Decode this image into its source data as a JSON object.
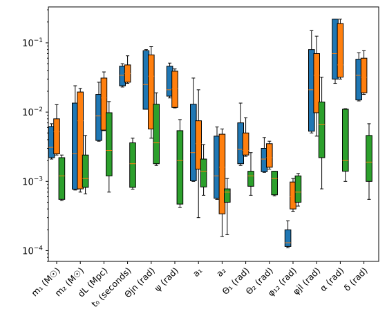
{
  "chart_data": {
    "type": "box",
    "title": "",
    "xlabel": "",
    "ylabel": "",
    "yscale": "log",
    "ylim": [
      7e-05,
      0.33
    ],
    "y_ticks": [
      {
        "value": 0.0001,
        "base": "10",
        "exp": "−4"
      },
      {
        "value": 0.001,
        "base": "10",
        "exp": "−3"
      },
      {
        "value": 0.01,
        "base": "10",
        "exp": "−2"
      },
      {
        "value": 0.1,
        "base": "10",
        "exp": "−1"
      }
    ],
    "categories": [
      "m₁ (M☉)",
      "m₂ (M☉)",
      "dL (Mpc)",
      "t₀ (seconds)",
      "Θjn (rad)",
      "ψ (rad)",
      "a₁",
      "a₂",
      "Θ₁ (rad)",
      "Θ₂ (rad)",
      "φ₁₂ (rad)",
      "φjl (rad)",
      "α (rad)",
      "δ (rad)"
    ],
    "series": [
      {
        "color": "#1f77b4",
        "boxes": [
          {
            "whislo": 0.0021,
            "q1": 0.0022,
            "med": 0.0031,
            "q3": 0.0062,
            "whishi": 0.0068
          },
          {
            "whislo": 0.00075,
            "q1": 0.00077,
            "med": 0.0025,
            "q3": 0.0135,
            "whishi": 0.024
          },
          {
            "whislo": 0.0038,
            "q1": 0.0039,
            "med": 0.0088,
            "q3": 0.018,
            "whishi": 0.027
          },
          {
            "whislo": 0.023,
            "q1": 0.024,
            "med": 0.034,
            "q3": 0.046,
            "whishi": 0.05
          },
          {
            "whislo": 0.011,
            "q1": 0.011,
            "med": 0.025,
            "q3": 0.077,
            "whishi": 0.08
          },
          {
            "whislo": 0.016,
            "q1": 0.017,
            "med": 0.021,
            "q3": 0.046,
            "whishi": 0.051
          },
          {
            "whislo": 0.001,
            "q1": 0.00102,
            "med": 0.0026,
            "q3": 0.013,
            "whishi": 0.031
          },
          {
            "whislo": 0.00055,
            "q1": 0.00057,
            "med": 0.0012,
            "q3": 0.0045,
            "whishi": 0.0061
          },
          {
            "whislo": 0.0017,
            "q1": 0.0018,
            "med": 0.0029,
            "q3": 0.007,
            "whishi": 0.0135
          },
          {
            "whislo": 0.00135,
            "q1": 0.00138,
            "med": 0.0021,
            "q3": 0.003,
            "whishi": 0.0043
          },
          {
            "whislo": 0.00011,
            "q1": 0.000115,
            "med": 0.00013,
            "q3": 0.0002,
            "whishi": 0.00027
          },
          {
            "whislo": 0.005,
            "q1": 0.0053,
            "med": 0.021,
            "q3": 0.08,
            "whishi": 0.15
          },
          {
            "whislo": 0.026,
            "q1": 0.03,
            "med": 0.07,
            "q3": 0.22,
            "whishi": 0.22
          },
          {
            "whislo": 0.0145,
            "q1": 0.015,
            "med": 0.034,
            "q3": 0.058,
            "whishi": 0.072
          }
        ]
      },
      {
        "color": "#ff7f0e",
        "boxes": [
          {
            "whislo": 0.0024,
            "q1": 0.0025,
            "med": 0.0052,
            "q3": 0.008,
            "whishi": 0.0128
          },
          {
            "whislo": 0.0007,
            "q1": 0.00078,
            "med": 0.0075,
            "q3": 0.0195,
            "whishi": 0.022
          },
          {
            "whislo": 0.0054,
            "q1": 0.0055,
            "med": 0.016,
            "q3": 0.031,
            "whishi": 0.038
          },
          {
            "whislo": 0.026,
            "q1": 0.027,
            "med": 0.036,
            "q3": 0.048,
            "whishi": 0.065
          },
          {
            "whislo": 0.0042,
            "q1": 0.0057,
            "med": 0.033,
            "q3": 0.067,
            "whishi": 0.088
          },
          {
            "whislo": 0.0115,
            "q1": 0.0117,
            "med": 0.022,
            "q3": 0.039,
            "whishi": 0.042
          },
          {
            "whislo": 0.0003,
            "q1": 0.0015,
            "med": 0.0035,
            "q3": 0.0075,
            "whishi": 0.021
          },
          {
            "whislo": 0.00016,
            "q1": 0.00034,
            "med": 0.0016,
            "q3": 0.0048,
            "whishi": 0.0057
          },
          {
            "whislo": 0.0023,
            "q1": 0.0024,
            "med": 0.0028,
            "q3": 0.005,
            "whishi": 0.0083
          },
          {
            "whislo": 0.0015,
            "q1": 0.0016,
            "med": 0.0022,
            "q3": 0.0035,
            "whishi": 0.0038
          },
          {
            "whislo": 0.00037,
            "q1": 0.0004,
            "med": 0.0006,
            "q3": 0.00098,
            "whishi": 0.0011
          },
          {
            "whislo": 0.0045,
            "q1": 0.0098,
            "med": 0.034,
            "q3": 0.07,
            "whishi": 0.125
          },
          {
            "whislo": 0.03,
            "q1": 0.032,
            "med": 0.048,
            "q3": 0.19,
            "whishi": 0.22
          },
          {
            "whislo": 0.018,
            "q1": 0.019,
            "med": 0.032,
            "q3": 0.06,
            "whishi": 0.077
          }
        ]
      },
      {
        "color": "#2ca02c",
        "boxes": [
          {
            "whislo": 0.00053,
            "q1": 0.00055,
            "med": 0.0012,
            "q3": 0.0022,
            "whishi": 0.0024
          },
          {
            "whislo": 0.00066,
            "q1": 0.00082,
            "med": 0.0011,
            "q3": 0.0024,
            "whishi": 0.0046
          },
          {
            "whislo": 0.0007,
            "q1": 0.0012,
            "med": 0.0028,
            "q3": 0.0098,
            "whishi": 0.0142
          },
          {
            "whislo": 0.00077,
            "q1": 0.00082,
            "med": 0.0018,
            "q3": 0.0036,
            "whishi": 0.0042
          },
          {
            "whislo": 0.0017,
            "q1": 0.0018,
            "med": 0.0036,
            "q3": 0.013,
            "whishi": 0.019
          },
          {
            "whislo": 0.00042,
            "q1": 0.00047,
            "med": 0.002,
            "q3": 0.0054,
            "whishi": 0.0078
          },
          {
            "whislo": 0.00063,
            "q1": 0.00083,
            "med": 0.0014,
            "q3": 0.0021,
            "whishi": 0.0034
          },
          {
            "whislo": 0.00017,
            "q1": 0.0005,
            "med": 0.0007,
            "q3": 0.00078,
            "whishi": 0.0011
          },
          {
            "whislo": 0.00063,
            "q1": 0.00085,
            "med": 0.0012,
            "q3": 0.0014,
            "whishi": 0.0026
          },
          {
            "whislo": 0.00062,
            "q1": 0.00064,
            "med": 0.0011,
            "q3": 0.0014,
            "whishi": 0.0014
          },
          {
            "whislo": 0.00044,
            "q1": 0.0005,
            "med": 0.0007,
            "q3": 0.0012,
            "whishi": 0.0013
          },
          {
            "whislo": 0.00078,
            "q1": 0.0022,
            "med": 0.0066,
            "q3": 0.014,
            "whishi": 0.032
          },
          {
            "whislo": 0.001,
            "q1": 0.0014,
            "med": 0.002,
            "q3": 0.011,
            "whishi": 0.0112
          },
          {
            "whislo": 0.00055,
            "q1": 0.001,
            "med": 0.0019,
            "q3": 0.0046,
            "whishi": 0.0068
          }
        ]
      }
    ],
    "grid": false,
    "legend": "none"
  }
}
